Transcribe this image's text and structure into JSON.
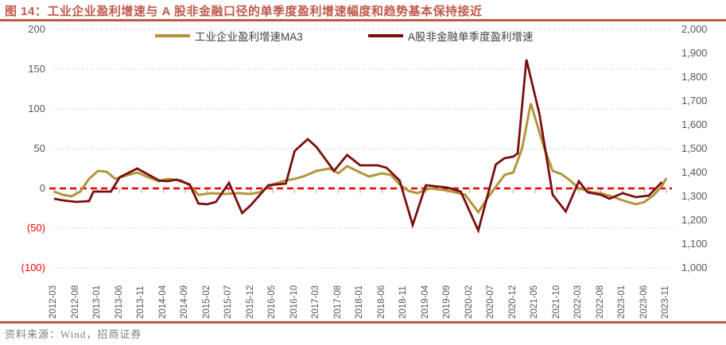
{
  "title": {
    "prefix": "图 14：",
    "text": "工业企业盈利增速与 A 股非金融口径的单季度盈利增速幅度和趋势基本保持接近"
  },
  "footer": {
    "source": "资料来源：Wind，招商证券"
  },
  "colors": {
    "accent_brick": "#C0584C",
    "series_gold": "#B2953B",
    "series_maroon": "#7A0E0F",
    "zero_line_red": "#EA0000",
    "gridline_gray": "#D9D9D9",
    "axis_text_gray": "#595959",
    "negative_tick_red": "#FF0000"
  },
  "chart_data": {
    "type": "line",
    "title": "工业企业盈利增速与A股非金融口径的单季度盈利增速幅度和趋势基本保持接近",
    "legend_position": "top",
    "grid": "horizontal-dashed",
    "zero_line": {
      "value": 0,
      "style": "red-dashed"
    },
    "left_axis": {
      "range": [
        -100,
        200
      ],
      "tick_values": [
        200,
        150,
        100,
        50,
        0,
        -50,
        -100
      ],
      "tick_labels": [
        "200",
        "150",
        "100",
        "50",
        "0",
        "(50)",
        "(100)"
      ]
    },
    "right_axis": {
      "range": [
        1000,
        2000
      ],
      "tick_labels": [
        "2,000",
        "1,900",
        "1,800",
        "1,700",
        "1,600",
        "1,500",
        "1,400",
        "1,300",
        "1,200",
        "1,100",
        "1,000"
      ]
    },
    "x_axis": {
      "tick_labels": [
        "2012-03",
        "2012-08",
        "2013-01",
        "2013-06",
        "2013-11",
        "2014-04",
        "2014-09",
        "2015-02",
        "2015-07",
        "2015-12",
        "2016-05",
        "2016-10",
        "2017-03",
        "2017-08",
        "2018-01",
        "2018-06",
        "2018-11",
        "2019-04",
        "2019-09",
        "2020-02",
        "2020-07",
        "2020-12",
        "2021-05",
        "2021-10",
        "2022-03",
        "2022-08",
        "2023-01",
        "2023-06",
        "2023-11"
      ]
    },
    "series": [
      {
        "key": "industrial-profit-ma3",
        "name": "工业企业盈利增速MA3",
        "color": "#B2953B",
        "width": 3,
        "points": [
          [
            "2012-03",
            -4
          ],
          [
            "2012-05",
            -8
          ],
          [
            "2012-07",
            -10
          ],
          [
            "2012-09",
            -4
          ],
          [
            "2012-11",
            12
          ],
          [
            "2013-01",
            22
          ],
          [
            "2013-03",
            21
          ],
          [
            "2013-05",
            12
          ],
          [
            "2013-08",
            17
          ],
          [
            "2013-10",
            20
          ],
          [
            "2014-01",
            13
          ],
          [
            "2014-03",
            9
          ],
          [
            "2014-05",
            12
          ],
          [
            "2014-08",
            10
          ],
          [
            "2014-10",
            4
          ],
          [
            "2014-12",
            -8
          ],
          [
            "2015-03",
            -6
          ],
          [
            "2015-06",
            -7
          ],
          [
            "2015-09",
            -6
          ],
          [
            "2015-12",
            -7
          ],
          [
            "2016-02",
            -5
          ],
          [
            "2016-05",
            5
          ],
          [
            "2016-08",
            10
          ],
          [
            "2016-10",
            12
          ],
          [
            "2016-12",
            15
          ],
          [
            "2017-03",
            22
          ],
          [
            "2017-06",
            25
          ],
          [
            "2017-08",
            19
          ],
          [
            "2017-10",
            28
          ],
          [
            "2018-01",
            20
          ],
          [
            "2018-03",
            15
          ],
          [
            "2018-06",
            19
          ],
          [
            "2018-08",
            17
          ],
          [
            "2018-10",
            5
          ],
          [
            "2018-12",
            -3
          ],
          [
            "2019-02",
            -6
          ],
          [
            "2019-05",
            0
          ],
          [
            "2019-08",
            -2
          ],
          [
            "2019-10",
            -4
          ],
          [
            "2020-01",
            -8
          ],
          [
            "2020-04",
            -30
          ],
          [
            "2020-06",
            -13
          ],
          [
            "2020-08",
            2
          ],
          [
            "2020-10",
            17
          ],
          [
            "2020-12",
            20
          ],
          [
            "2021-02",
            50
          ],
          [
            "2021-04",
            107
          ],
          [
            "2021-07",
            52
          ],
          [
            "2021-09",
            22
          ],
          [
            "2021-11",
            18
          ],
          [
            "2022-01",
            10
          ],
          [
            "2022-03",
            0
          ],
          [
            "2022-06",
            -5
          ],
          [
            "2022-08",
            -6
          ],
          [
            "2022-11",
            -11
          ],
          [
            "2023-01",
            -15
          ],
          [
            "2023-04",
            -20
          ],
          [
            "2023-06",
            -17
          ],
          [
            "2023-08",
            -9
          ],
          [
            "2023-10",
            3
          ],
          [
            "2023-11",
            13
          ]
        ]
      },
      {
        "key": "ashare-nonfinancial-quarterly",
        "name": "A股非金融单季度盈利增速",
        "color": "#7A0E0F",
        "width": 2.8,
        "points": [
          [
            "2012-03",
            -13
          ],
          [
            "2012-05",
            -15
          ],
          [
            "2012-08",
            -17
          ],
          [
            "2012-11",
            -16
          ],
          [
            "2012-12",
            -4
          ],
          [
            "2013-04",
            -4
          ],
          [
            "2013-06",
            14
          ],
          [
            "2013-10",
            25
          ],
          [
            "2014-01",
            16
          ],
          [
            "2014-03",
            10
          ],
          [
            "2014-05",
            9
          ],
          [
            "2014-07",
            11
          ],
          [
            "2014-10",
            5
          ],
          [
            "2014-12",
            -19
          ],
          [
            "2015-02",
            -20
          ],
          [
            "2015-04",
            -17
          ],
          [
            "2015-07",
            7
          ],
          [
            "2015-10",
            -31
          ],
          [
            "2015-12",
            -21
          ],
          [
            "2016-04",
            4
          ],
          [
            "2016-08",
            6
          ],
          [
            "2016-10",
            47
          ],
          [
            "2017-01",
            62
          ],
          [
            "2017-03",
            52
          ],
          [
            "2017-07",
            22
          ],
          [
            "2017-10",
            42
          ],
          [
            "2018-01",
            29
          ],
          [
            "2018-05",
            29
          ],
          [
            "2018-07",
            26
          ],
          [
            "2018-10",
            10
          ],
          [
            "2019-01",
            -46
          ],
          [
            "2019-04",
            4
          ],
          [
            "2019-09",
            1
          ],
          [
            "2019-12",
            -4
          ],
          [
            "2020-04",
            -53
          ],
          [
            "2020-08",
            30
          ],
          [
            "2020-10",
            38
          ],
          [
            "2020-12",
            40
          ],
          [
            "2021-01",
            44
          ],
          [
            "2021-03",
            162
          ],
          [
            "2021-06",
            93
          ],
          [
            "2021-09",
            -8
          ],
          [
            "2021-12",
            -29
          ],
          [
            "2022-03",
            9
          ],
          [
            "2022-05",
            -5
          ],
          [
            "2022-08",
            -8
          ],
          [
            "2022-10",
            -13
          ],
          [
            "2023-01",
            -6
          ],
          [
            "2023-04",
            -11
          ],
          [
            "2023-07",
            -9
          ],
          [
            "2023-10",
            8
          ]
        ]
      }
    ]
  }
}
